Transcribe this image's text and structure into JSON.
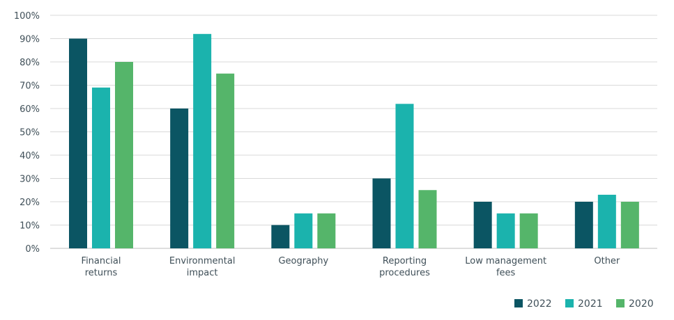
{
  "chart_data": {
    "type": "bar",
    "categories": [
      [
        "Financial",
        "returns"
      ],
      [
        "Environmental",
        "impact"
      ],
      [
        "Geography"
      ],
      [
        "Reporting",
        "procedures"
      ],
      [
        "Low management",
        "fees"
      ],
      [
        "Other"
      ]
    ],
    "series": [
      {
        "name": "2022",
        "color": "#0b5563",
        "values": [
          90,
          60,
          10,
          30,
          20,
          20
        ]
      },
      {
        "name": "2021",
        "color": "#1bb3ad",
        "values": [
          69,
          92,
          15,
          62,
          15,
          23
        ]
      },
      {
        "name": "2020",
        "color": "#55b56a",
        "values": [
          80,
          75,
          15,
          25,
          15,
          20
        ]
      }
    ],
    "y_ticks": [
      "0%",
      "10%",
      "20%",
      "30%",
      "40%",
      "50%",
      "60%",
      "70%",
      "80%",
      "90%",
      "100%"
    ],
    "ylim": [
      0,
      100
    ],
    "grid": true,
    "legend_position": "bottom-right"
  }
}
